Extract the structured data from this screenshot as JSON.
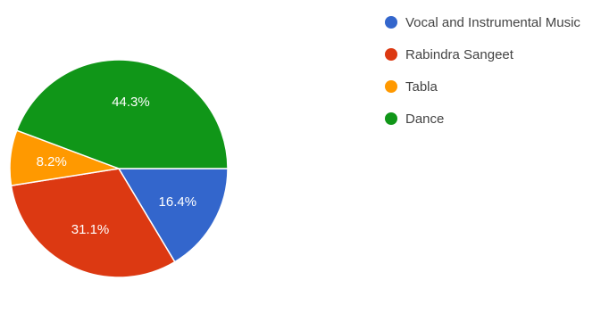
{
  "chart_data": {
    "type": "pie",
    "title": "",
    "legend_position": "right",
    "slices": [
      {
        "name": "Vocal and Instrumental Music",
        "value": 16.4,
        "label": "16.4%",
        "color": "#3366cc"
      },
      {
        "name": "Rabindra Sangeet",
        "value": 31.1,
        "label": "31.1%",
        "color": "#dc3912"
      },
      {
        "name": "Tabla",
        "value": 8.2,
        "label": "8.2%",
        "color": "#ff9900"
      },
      {
        "name": "Dance",
        "value": 44.3,
        "label": "44.3%",
        "color": "#109618"
      }
    ]
  }
}
